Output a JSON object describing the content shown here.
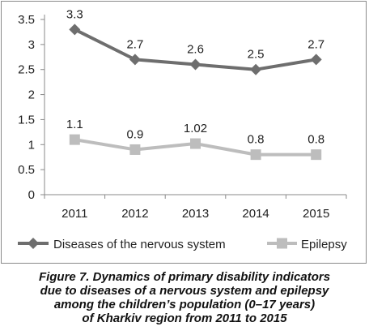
{
  "chart_data": {
    "type": "line",
    "categories": [
      "2011",
      "2012",
      "2013",
      "2014",
      "2015"
    ],
    "ylim": [
      0,
      3.5
    ],
    "yticks": [
      "0",
      "0.5",
      "1",
      "1.5",
      "2",
      "2.5",
      "3",
      "3.5"
    ],
    "grid": false,
    "legend_position": "bottom",
    "series": [
      {
        "name": "Diseases of the nervous system",
        "values": [
          3.3,
          2.7,
          2.6,
          2.5,
          2.7
        ],
        "labels": [
          "3.3",
          "2.7",
          "2.6",
          "2.5",
          "2.7"
        ],
        "color": "#6e6e6e",
        "marker": "diamond"
      },
      {
        "name": "Epilepsy",
        "values": [
          1.1,
          0.9,
          1.02,
          0.8,
          0.8
        ],
        "labels": [
          "1.1",
          "0.9",
          "1.02",
          "0.8",
          "0.8"
        ],
        "color": "#bdbdbd",
        "marker": "square"
      }
    ]
  },
  "caption": {
    "line1": "Figure 7. Dynamics of primary disability indicators",
    "line2": "due to diseases of a nervous system and epilepsy",
    "line3": "among the children’s population (0–17 years)",
    "line4": "of Kharkiv region from 2011 to 2015"
  }
}
